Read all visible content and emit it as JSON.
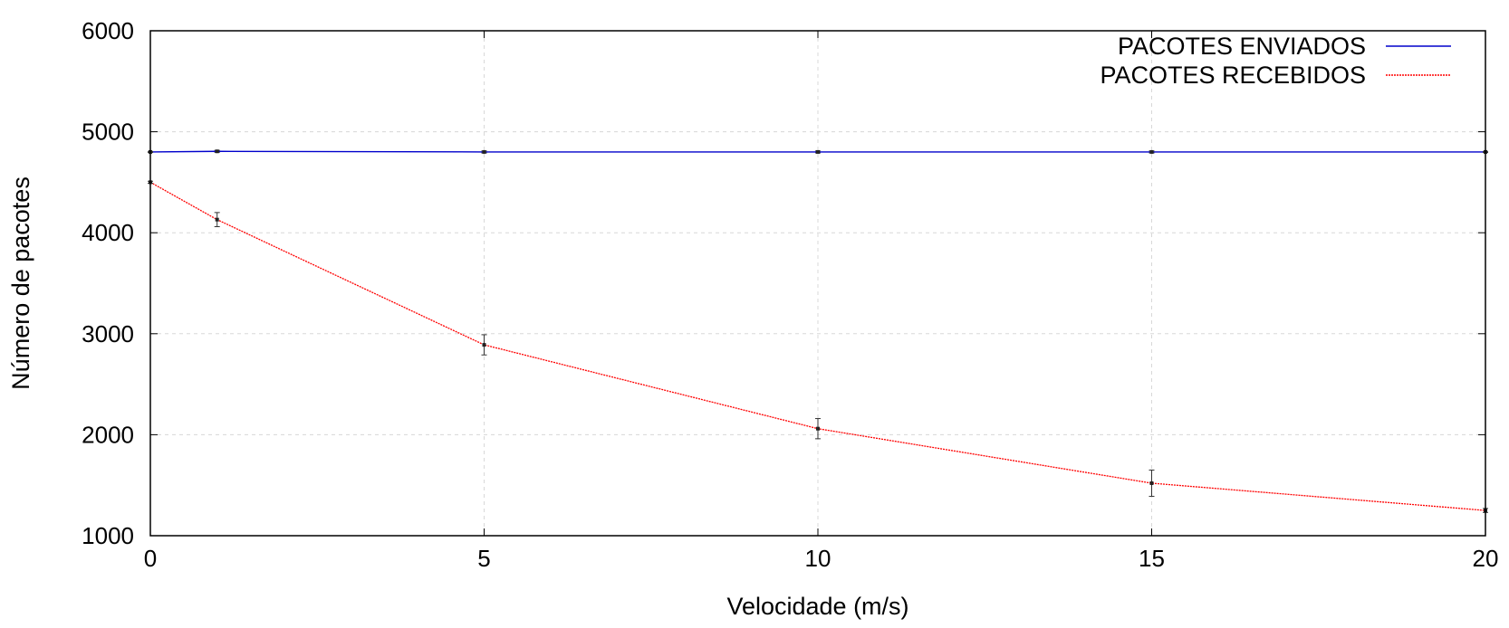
{
  "chart_data": {
    "type": "line",
    "title": "",
    "xlabel": "Velocidade (m/s)",
    "ylabel": "Número de pacotes",
    "xlim": [
      0,
      20
    ],
    "ylim": [
      1000,
      6000
    ],
    "xticks": [
      0,
      5,
      10,
      15,
      20
    ],
    "yticks": [
      1000,
      2000,
      3000,
      4000,
      5000,
      6000
    ],
    "x_tick_labels": [
      "0",
      "5",
      "10",
      "15",
      "20"
    ],
    "y_tick_labels": [
      "1000",
      "2000",
      "3000",
      "4000",
      "5000",
      "6000"
    ],
    "grid": true,
    "legend_position": "top-right",
    "x": [
      0,
      1,
      5,
      10,
      15,
      20
    ],
    "series": [
      {
        "name": "PACOTES ENVIADOS",
        "color": "#0000cc",
        "line_style": "solid",
        "values": [
          4800,
          4806,
          4800,
          4800,
          4800,
          4800
        ],
        "error": [
          5,
          10,
          10,
          10,
          10,
          5
        ]
      },
      {
        "name": "PACOTES RECEBIDOS",
        "color": "#ff0000",
        "line_style": "dotted",
        "values": [
          4500,
          4130,
          2890,
          2060,
          1520,
          1250
        ],
        "error": [
          10,
          70,
          100,
          100,
          130,
          20
        ]
      }
    ]
  }
}
